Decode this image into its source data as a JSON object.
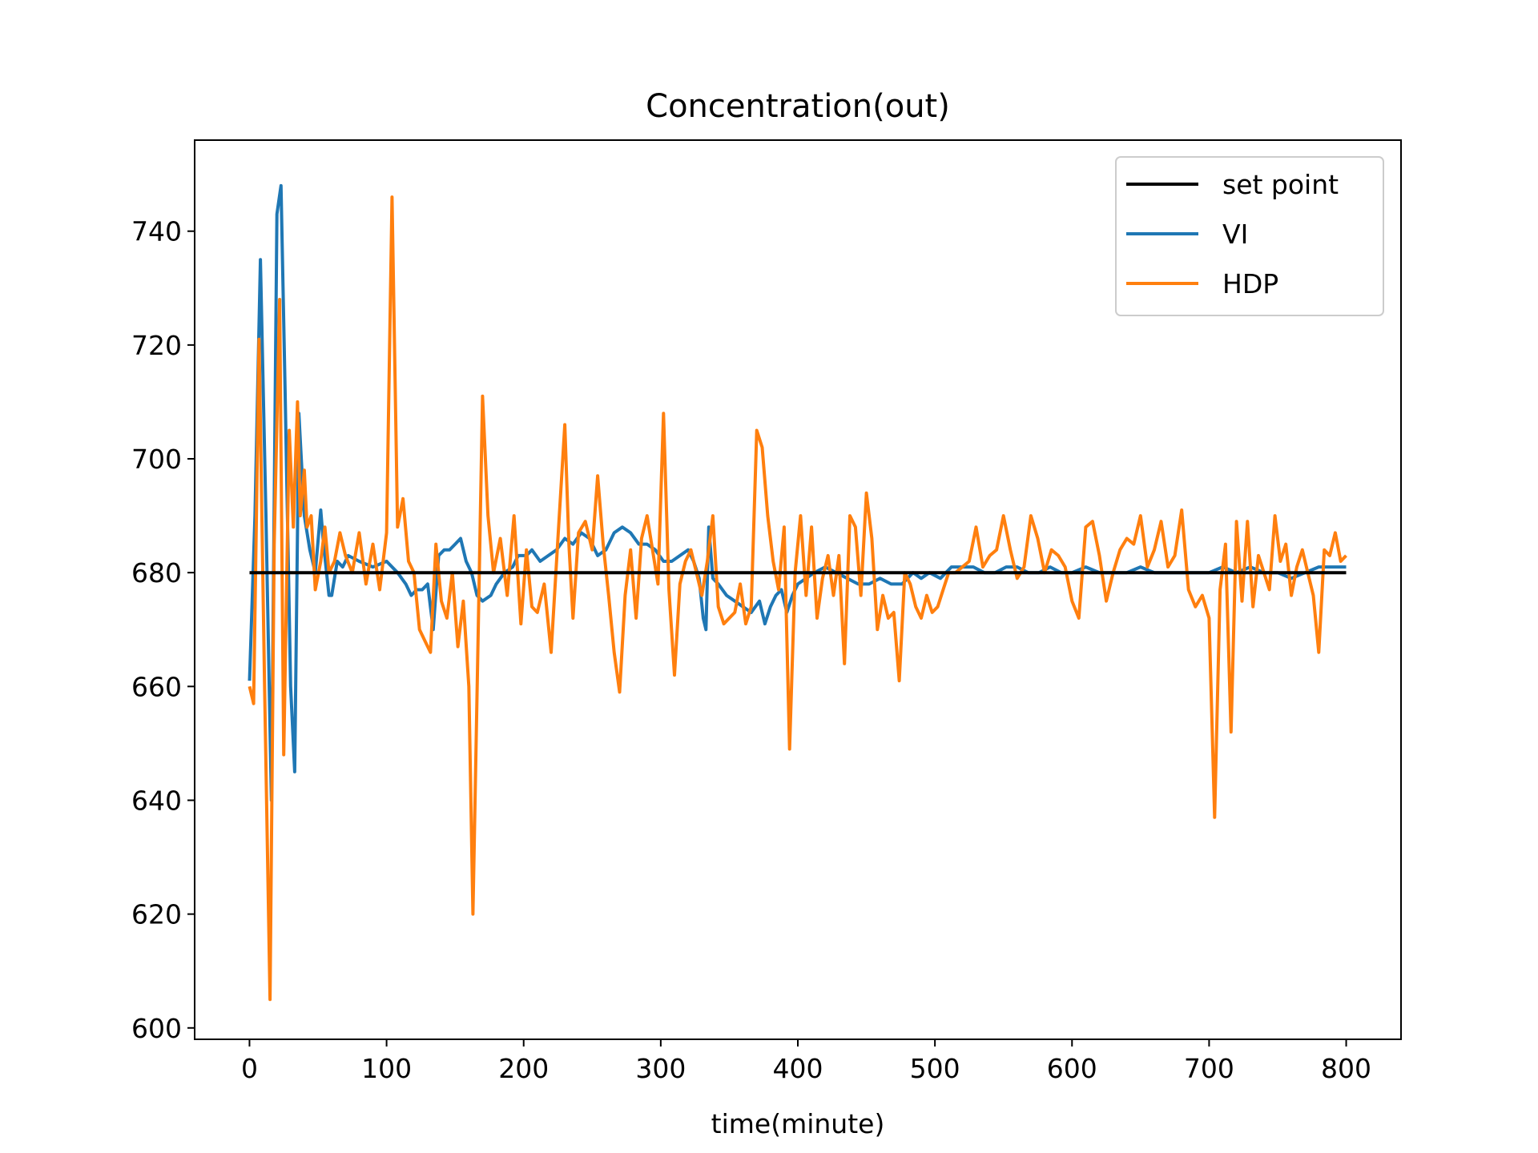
{
  "chart_data": {
    "type": "line",
    "title": "Concentration(out)",
    "xlabel": "time(minute)",
    "ylabel": "",
    "xlim": [
      -40,
      840
    ],
    "ylim": [
      598,
      756
    ],
    "xticks": [
      0,
      100,
      200,
      300,
      400,
      500,
      600,
      700,
      800
    ],
    "yticks": [
      600,
      620,
      640,
      660,
      680,
      700,
      720,
      740
    ],
    "grid": false,
    "legend_position": "top-right",
    "series": [
      {
        "name": "set point",
        "color": "#000000",
        "x": [
          0,
          800
        ],
        "y": [
          680,
          680
        ]
      },
      {
        "name": "VI",
        "color": "#1f77b4",
        "x": [
          0,
          4,
          8,
          12,
          16,
          20,
          23,
          26,
          30,
          33,
          36,
          40,
          44,
          48,
          52,
          54,
          58,
          60,
          64,
          68,
          72,
          80,
          90,
          100,
          108,
          114,
          118,
          122,
          126,
          130,
          134,
          138,
          142,
          146,
          150,
          154,
          158,
          162,
          166,
          170,
          176,
          180,
          186,
          192,
          196,
          202,
          206,
          212,
          218,
          224,
          230,
          236,
          242,
          248,
          254,
          260,
          266,
          272,
          278,
          284,
          290,
          296,
          302,
          308,
          314,
          320,
          324,
          328,
          331,
          333,
          335,
          338,
          342,
          348,
          354,
          360,
          366,
          372,
          376,
          380,
          384,
          388,
          392,
          396,
          400,
          406,
          412,
          420,
          428,
          436,
          444,
          452,
          460,
          468,
          476,
          484,
          490,
          496,
          504,
          512,
          520,
          528,
          536,
          544,
          552,
          560,
          568,
          576,
          584,
          592,
          600,
          610,
          620,
          630,
          640,
          650,
          660,
          670,
          680,
          690,
          700,
          710,
          720,
          730,
          740,
          750,
          760,
          770,
          780,
          790,
          800
        ],
        "y": [
          661,
          690,
          735,
          690,
          640,
          743,
          748,
          712,
          660,
          645,
          708,
          690,
          684,
          680,
          691,
          685,
          676,
          676,
          682,
          681,
          683,
          682,
          681,
          682,
          680,
          678,
          676,
          677,
          677,
          678,
          670,
          683,
          684,
          684,
          685,
          686,
          682,
          680,
          676,
          675,
          676,
          678,
          680,
          681,
          683,
          683,
          684,
          682,
          683,
          684,
          686,
          685,
          687,
          686,
          683,
          684,
          687,
          688,
          687,
          685,
          685,
          684,
          682,
          682,
          683,
          684,
          682,
          679,
          672,
          670,
          688,
          679,
          678,
          676,
          675,
          674,
          673,
          675,
          671,
          674,
          676,
          677,
          673,
          676,
          678,
          679,
          680,
          681,
          680,
          679,
          678,
          678,
          679,
          678,
          678,
          680,
          679,
          680,
          679,
          681,
          681,
          681,
          680,
          680,
          681,
          681,
          680,
          680,
          681,
          680,
          680,
          681,
          680,
          680,
          680,
          681,
          680,
          680,
          680,
          680,
          680,
          681,
          680,
          681,
          680,
          680,
          679,
          680,
          681,
          681,
          681
        ]
      },
      {
        "name": "HDP",
        "color": "#ff7f0e",
        "x": [
          0,
          3,
          7,
          11,
          15,
          18,
          22,
          25,
          29,
          32,
          35,
          37,
          40,
          42,
          45,
          48,
          52,
          55,
          58,
          62,
          66,
          70,
          75,
          80,
          85,
          90,
          95,
          100,
          104,
          108,
          112,
          116,
          120,
          124,
          128,
          132,
          136,
          140,
          144,
          148,
          152,
          156,
          160,
          163,
          167,
          170,
          174,
          178,
          183,
          188,
          193,
          198,
          202,
          206,
          210,
          215,
          220,
          225,
          230,
          233,
          236,
          240,
          245,
          250,
          254,
          258,
          262,
          266,
          270,
          274,
          278,
          282,
          286,
          290,
          294,
          298,
          302,
          306,
          310,
          314,
          318,
          322,
          326,
          330,
          334,
          338,
          342,
          346,
          350,
          354,
          358,
          362,
          366,
          370,
          374,
          378,
          382,
          386,
          390,
          394,
          398,
          402,
          406,
          410,
          414,
          418,
          422,
          426,
          430,
          434,
          438,
          442,
          446,
          450,
          454,
          458,
          462,
          466,
          470,
          474,
          478,
          482,
          486,
          490,
          494,
          498,
          502,
          506,
          510,
          515,
          520,
          525,
          530,
          535,
          540,
          545,
          550,
          555,
          560,
          565,
          570,
          575,
          580,
          585,
          590,
          595,
          600,
          605,
          610,
          615,
          620,
          625,
          630,
          635,
          640,
          645,
          650,
          655,
          660,
          665,
          670,
          675,
          680,
          685,
          690,
          695,
          700,
          704,
          708,
          712,
          716,
          720,
          724,
          728,
          732,
          736,
          740,
          744,
          748,
          752,
          756,
          760,
          764,
          768,
          772,
          776,
          780,
          784,
          788,
          792,
          796,
          800
        ],
        "y": [
          660,
          657,
          721,
          660,
          605,
          685,
          728,
          648,
          705,
          688,
          710,
          690,
          698,
          688,
          690,
          677,
          682,
          688,
          680,
          682,
          687,
          683,
          680,
          687,
          678,
          685,
          677,
          687,
          746,
          688,
          693,
          682,
          680,
          670,
          668,
          666,
          685,
          675,
          672,
          680,
          667,
          675,
          660,
          620,
          672,
          711,
          690,
          680,
          686,
          676,
          690,
          671,
          684,
          674,
          673,
          678,
          666,
          686,
          706,
          685,
          672,
          687,
          689,
          684,
          697,
          685,
          676,
          666,
          659,
          676,
          684,
          672,
          686,
          690,
          684,
          678,
          708,
          677,
          662,
          678,
          682,
          684,
          680,
          676,
          682,
          690,
          674,
          671,
          672,
          673,
          678,
          671,
          674,
          705,
          702,
          690,
          682,
          677,
          688,
          649,
          680,
          690,
          676,
          688,
          672,
          679,
          683,
          676,
          683,
          664,
          690,
          688,
          676,
          694,
          686,
          670,
          676,
          672,
          673,
          661,
          680,
          678,
          674,
          672,
          676,
          673,
          674,
          677,
          680,
          680,
          681,
          682,
          688,
          681,
          683,
          684,
          690,
          684,
          679,
          681,
          690,
          686,
          680,
          684,
          683,
          681,
          675,
          672,
          688,
          689,
          683,
          675,
          680,
          684,
          686,
          685,
          690,
          681,
          684,
          689,
          681,
          683,
          691,
          677,
          674,
          676,
          672,
          637,
          677,
          685,
          652,
          689,
          675,
          689,
          674,
          683,
          680,
          677,
          690,
          682,
          685,
          676,
          681,
          684,
          680,
          676,
          666,
          684,
          683,
          687,
          682,
          683
        ]
      }
    ]
  }
}
